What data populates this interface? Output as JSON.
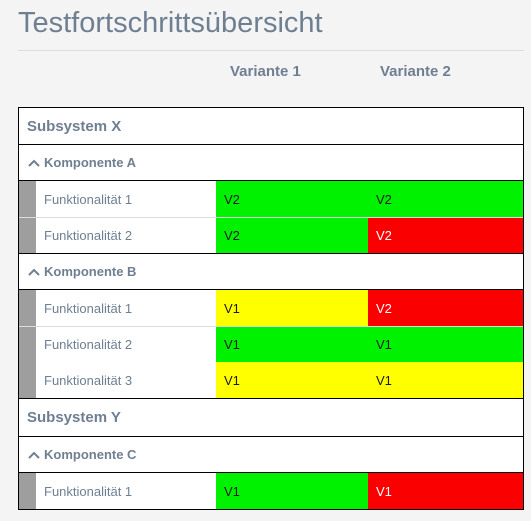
{
  "title": "Testfortschrittsübersicht",
  "columns": [
    "Variante 1",
    "Variante 2"
  ],
  "colors": {
    "green": "#00f200",
    "yellow": "#ffff00",
    "red": "#fa0000",
    "stripe": "#9e9e9e",
    "text_muted": "#6f7f92"
  },
  "subsystems": [
    {
      "name": "Subsystem X",
      "components": [
        {
          "name": "Komponente A",
          "icon": "chevron-up-icon",
          "rows": [
            {
              "label": "Funktionalität 1",
              "cells": [
                {
                  "text": "V2",
                  "status": "green"
                },
                {
                  "text": "V2",
                  "status": "green"
                }
              ]
            },
            {
              "label": "Funktionalität 2",
              "cells": [
                {
                  "text": "V2",
                  "status": "green"
                },
                {
                  "text": "V2",
                  "status": "red"
                }
              ]
            }
          ]
        },
        {
          "name": "Komponente B",
          "icon": "chevron-up-icon",
          "rows": [
            {
              "label": "Funktionalität 1",
              "cells": [
                {
                  "text": "V1",
                  "status": "yellow"
                },
                {
                  "text": "V2",
                  "status": "red"
                }
              ]
            },
            {
              "label": "Funktionalität 2",
              "cells": [
                {
                  "text": "V1",
                  "status": "green"
                },
                {
                  "text": "V1",
                  "status": "green"
                }
              ]
            },
            {
              "label": "Funktionalität 3",
              "cells": [
                {
                  "text": "V1",
                  "status": "yellow"
                },
                {
                  "text": "V1",
                  "status": "yellow"
                }
              ]
            }
          ]
        }
      ]
    },
    {
      "name": "Subsystem Y",
      "components": [
        {
          "name": "Komponente C",
          "icon": "chevron-up-icon",
          "rows": [
            {
              "label": "Funktionalität 1",
              "cells": [
                {
                  "text": "V1",
                  "status": "green"
                },
                {
                  "text": "V1",
                  "status": "red"
                }
              ]
            }
          ]
        }
      ]
    }
  ]
}
